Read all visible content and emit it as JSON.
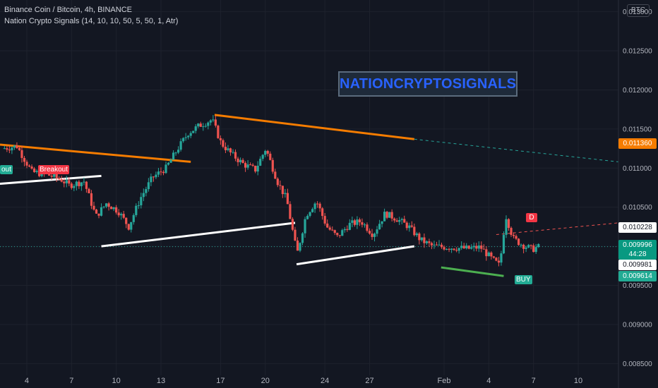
{
  "header": {
    "symbol_line": "Binance Coin / Bitcoin, 4h, BINANCE",
    "indicator_line": "Nation Crypto Signals  (14, 10, 10, 50, 5, 50, 1, Atr)"
  },
  "currency_badge": "BTC",
  "brand_box": "NATIONCRYPTOSIGNALS",
  "price_tags": {
    "orange": "0.011360",
    "upper_white": "0.010228",
    "last_price": "0.009996",
    "countdown": "44:28",
    "lower_white": "0.009981",
    "green": "0.009614"
  },
  "signals": {
    "breakout_partial": "out",
    "breakout": "Breakout",
    "buy": "BUY",
    "d": "D"
  },
  "colors": {
    "background": "#131722",
    "up_candle": "#26a69a",
    "down_candle": "#ef5350",
    "orange_line": "#f57c00",
    "white_line": "#ffffff",
    "green_line": "#4caf50",
    "brand_text": "#2962ff"
  },
  "chart_data": {
    "type": "candlestick",
    "title": "Binance Coin / Bitcoin, 4h, BINANCE",
    "ylim": [
      0.00835,
      0.01315
    ],
    "y_ticks": [
      "0.013000",
      "0.012500",
      "0.012000",
      "0.011500",
      "0.011000",
      "0.010500",
      "0.010000",
      "0.009500",
      "0.009000",
      "0.008500"
    ],
    "y_tick_values": [
      0.013,
      0.0125,
      0.012,
      0.0115,
      0.011,
      0.0105,
      0.01,
      0.0095,
      0.009,
      0.0085
    ],
    "x_ticks": [
      "4",
      "7",
      "10",
      "13",
      "17",
      "20",
      "24",
      "27",
      "Feb",
      "4",
      "7",
      "10"
    ],
    "x_tick_days": [
      4,
      7,
      10,
      13,
      17,
      20,
      24,
      27,
      32,
      35,
      38,
      41
    ],
    "x_day_range": [
      2.2,
      43.7
    ],
    "close_path": [
      [
        2.5,
        0.01125
      ],
      [
        3.5,
        0.01128
      ],
      [
        4.5,
        0.01095
      ],
      [
        5.5,
        0.01092
      ],
      [
        6.5,
        0.01085
      ],
      [
        7.0,
        0.01078
      ],
      [
        8.0,
        0.01083
      ],
      [
        8.8,
        0.01038
      ],
      [
        9.5,
        0.01055
      ],
      [
        10.3,
        0.01045
      ],
      [
        11.0,
        0.01025
      ],
      [
        11.8,
        0.01062
      ],
      [
        12.6,
        0.01088
      ],
      [
        13.5,
        0.011
      ],
      [
        14.3,
        0.01125
      ],
      [
        15.0,
        0.01145
      ],
      [
        15.8,
        0.01155
      ],
      [
        16.6,
        0.01162
      ],
      [
        17.2,
        0.01132
      ],
      [
        17.9,
        0.01118
      ],
      [
        18.7,
        0.01105
      ],
      [
        19.5,
        0.01098
      ],
      [
        20.2,
        0.01125
      ],
      [
        21.0,
        0.01082
      ],
      [
        21.6,
        0.0106
      ],
      [
        22.3,
        0.0099
      ],
      [
        22.9,
        0.0104
      ],
      [
        23.6,
        0.01058
      ],
      [
        24.3,
        0.01025
      ],
      [
        25.0,
        0.01012
      ],
      [
        25.8,
        0.01028
      ],
      [
        26.6,
        0.01032
      ],
      [
        27.4,
        0.01015
      ],
      [
        28.2,
        0.01042
      ],
      [
        29.0,
        0.01035
      ],
      [
        29.8,
        0.01025
      ],
      [
        30.6,
        0.01008
      ],
      [
        31.4,
        0.01
      ],
      [
        32.2,
        0.00999
      ],
      [
        33.0,
        0.00998
      ],
      [
        33.8,
        0.00997
      ],
      [
        34.6,
        0.00999
      ],
      [
        35.3,
        0.00985
      ],
      [
        35.9,
        0.00975
      ],
      [
        36.3,
        0.0104
      ],
      [
        36.8,
        0.0101
      ],
      [
        37.4,
        0.01002
      ],
      [
        38.1,
        0.00996
      ],
      [
        38.4,
        0.00999
      ]
    ],
    "lines": [
      {
        "name": "orange upper",
        "color": "orange",
        "points": [
          [
            16.6,
            0.01168
          ],
          [
            30.0,
            0.01137
          ]
        ]
      },
      {
        "name": "orange upper projection",
        "color": "teal-dashed",
        "points": [
          [
            30.0,
            0.01137
          ],
          [
            43.7,
            0.01108
          ]
        ]
      },
      {
        "name": "orange left",
        "color": "orange",
        "points": [
          [
            2.2,
            0.0113
          ],
          [
            15.0,
            0.01108
          ]
        ]
      },
      {
        "name": "white lower",
        "color": "white",
        "points": [
          [
            9.0,
            0.01
          ],
          [
            22.0,
            0.0103
          ]
        ]
      },
      {
        "name": "white lower 2",
        "color": "white",
        "points": [
          [
            22.1,
            0.00977
          ],
          [
            30.0,
            0.01
          ]
        ]
      },
      {
        "name": "white left",
        "color": "white",
        "points": [
          [
            2.2,
            0.0108
          ],
          [
            9.0,
            0.0109
          ]
        ]
      },
      {
        "name": "green support",
        "color": "green",
        "points": [
          [
            31.8,
            0.00973
          ],
          [
            36.0,
            0.00962
          ]
        ]
      },
      {
        "name": "red dashed resistance",
        "color": "red-dashed",
        "points": [
          [
            35.5,
            0.01015
          ],
          [
            43.7,
            0.0103
          ]
        ]
      }
    ],
    "last_price": 0.009996
  }
}
